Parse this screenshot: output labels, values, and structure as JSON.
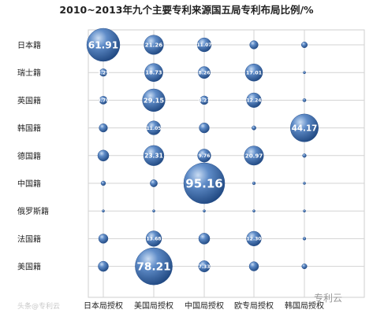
{
  "chart_data": {
    "type": "bubble",
    "title": "2010~2013年九个主要专利来源国五局专利布局比例/%",
    "categories_x": [
      "日本局授权",
      "美国局授权",
      "中国局授权",
      "欧专局授权",
      "韩国局授权"
    ],
    "categories_y": [
      "日本籍",
      "瑞士籍",
      "英国籍",
      "韩国籍",
      "德国籍",
      "中国籍",
      "俄罗斯籍",
      "法国籍",
      "美国籍"
    ],
    "grid": true,
    "bubble_color": "#3f6fb0",
    "series": [
      {
        "name": "日本籍",
        "values": [
          61.91,
          21.26,
          11.07,
          4.0,
          2.0
        ],
        "labels": [
          "61.91",
          "21.26",
          "11.07",
          "",
          ""
        ]
      },
      {
        "name": "瑞士籍",
        "values": [
          3.29,
          18.73,
          8.26,
          17.01,
          0.3
        ],
        "labels": [
          "3.29",
          "18.73",
          "8.26",
          "17.01",
          ""
        ]
      },
      {
        "name": "英国籍",
        "values": [
          3.7,
          29.15,
          4.21,
          12.24,
          0.6
        ],
        "labels": [
          "3.70",
          "29.15",
          "4.21",
          "12.24",
          ""
        ]
      },
      {
        "name": "韩国籍",
        "values": [
          4.0,
          11.05,
          5.8,
          1.0,
          44.17
        ],
        "labels": [
          "",
          "11.05",
          "",
          "",
          "44.17"
        ]
      },
      {
        "name": "德国籍",
        "values": [
          7.0,
          23.31,
          9.76,
          20.97,
          0.8
        ],
        "labels": [
          "",
          "23.31",
          "9.76",
          "20.97",
          ""
        ]
      },
      {
        "name": "中国籍",
        "values": [
          1.2,
          3.0,
          95.16,
          0.5,
          0.1
        ],
        "labels": [
          "",
          "",
          "95.16",
          "",
          ""
        ]
      },
      {
        "name": "俄罗斯籍",
        "values": [
          0.1,
          0.3,
          0.2,
          0.1,
          0.05
        ],
        "labels": [
          "",
          "",
          "",
          "",
          ""
        ]
      },
      {
        "name": "法国籍",
        "values": [
          5.0,
          13.68,
          7.0,
          12.3,
          0.5
        ],
        "labels": [
          "",
          "13.68",
          "",
          "12.30",
          ""
        ]
      },
      {
        "name": "美国籍",
        "values": [
          6.0,
          78.21,
          7.33,
          5.0,
          1.5
        ],
        "labels": [
          "",
          "78.21",
          "7.33",
          "",
          ""
        ]
      }
    ]
  },
  "watermarks": {
    "left": "头条@专利云",
    "right": "专利云"
  }
}
